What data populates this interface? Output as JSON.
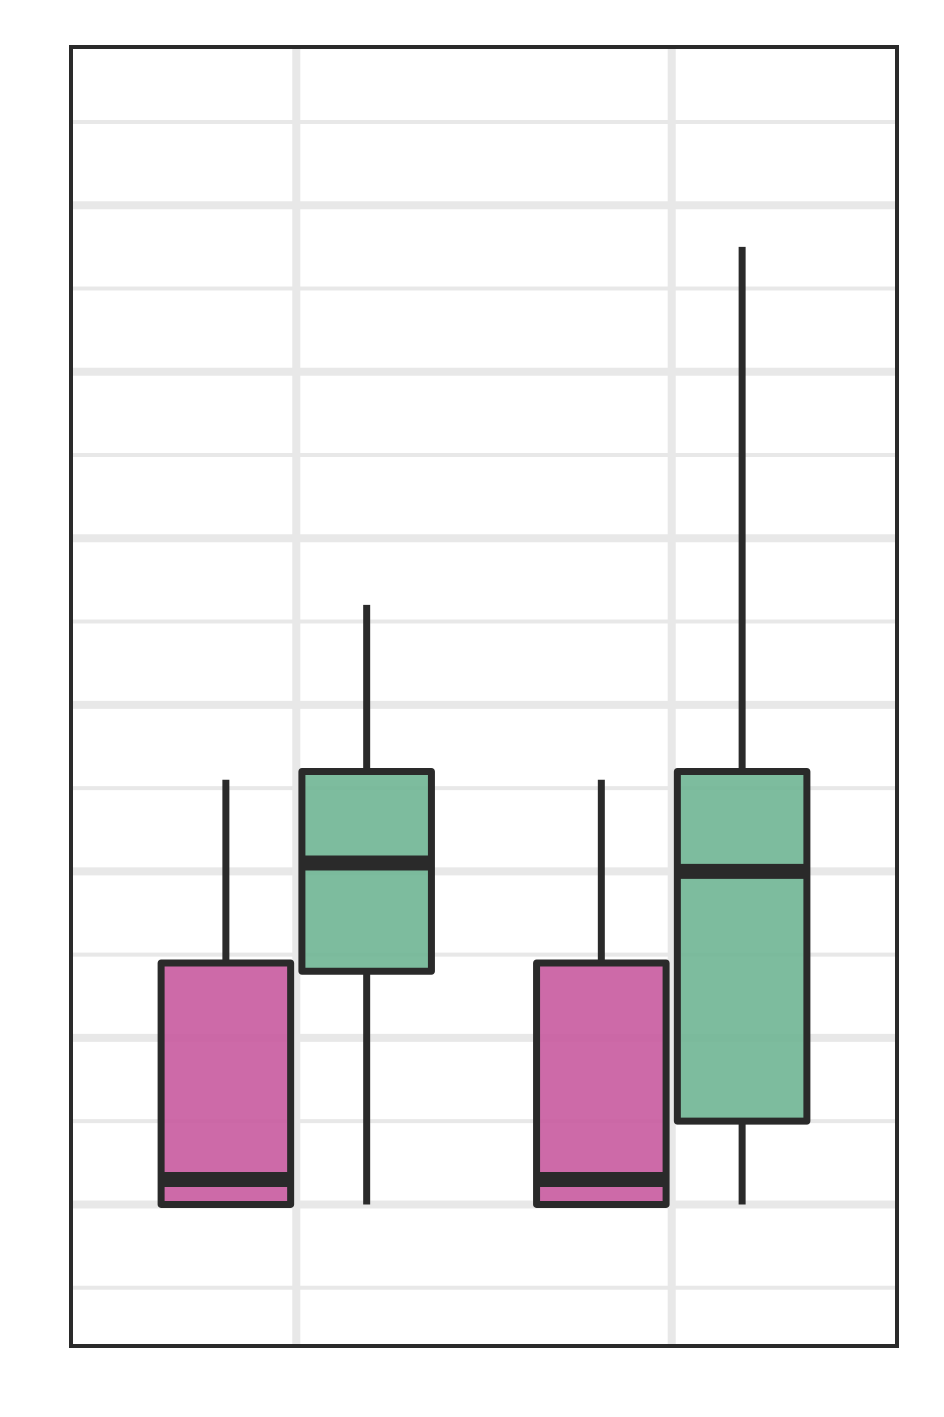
{
  "chart_data": {
    "type": "boxplot",
    "title": "",
    "xlabel": "",
    "ylabel": "",
    "categories": [
      "",
      ""
    ],
    "series": [
      {
        "color": "#c85a9f",
        "boxes": [
          {
            "category": 0,
            "whisker_low": 0.0,
            "q1": 0.0,
            "median": 0.3,
            "q3": 2.9,
            "whisker_high": 5.1
          },
          {
            "category": 1,
            "whisker_low": 0.0,
            "q1": 0.0,
            "median": 0.3,
            "q3": 2.9,
            "whisker_high": 5.1
          }
        ]
      },
      {
        "color": "#6fb593",
        "boxes": [
          {
            "category": 0,
            "whisker_low": 0.0,
            "q1": 2.8,
            "median": 4.1,
            "q3": 5.2,
            "whisker_high": 7.2
          },
          {
            "category": 1,
            "whisker_low": 0.0,
            "q1": 1.0,
            "median": 4.0,
            "q3": 5.2,
            "whisker_high": 11.5
          }
        ]
      }
    ],
    "ylim": [
      -1.7,
      13.9
    ],
    "xlim": [
      0.4,
      2.6
    ],
    "grid": true,
    "legend": "none",
    "frame_color": "#2a2a2a",
    "grid_color": "#e8e8e8"
  }
}
